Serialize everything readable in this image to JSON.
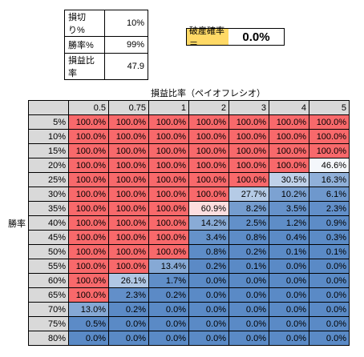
{
  "params": {
    "rows": [
      {
        "label": "損切り%",
        "value": "10%"
      },
      {
        "label": "勝率%",
        "value": "99%"
      },
      {
        "label": "損益比率",
        "value": "47.9"
      }
    ]
  },
  "ruin": {
    "label": "破産確率＝",
    "value": "0.0%"
  },
  "grid": {
    "title": "損益比率（ペイオフレシオ）",
    "row_axis_label": "勝率",
    "columns": [
      "0.5",
      "0.75",
      "1",
      "2",
      "3",
      "4",
      "5"
    ],
    "rows": [
      {
        "rate": "5%",
        "cells": [
          "100.0%",
          "100.0%",
          "100.0%",
          "100.0%",
          "100.0%",
          "100.0%",
          "100.0%"
        ]
      },
      {
        "rate": "10%",
        "cells": [
          "100.0%",
          "100.0%",
          "100.0%",
          "100.0%",
          "100.0%",
          "100.0%",
          "100.0%"
        ]
      },
      {
        "rate": "15%",
        "cells": [
          "100.0%",
          "100.0%",
          "100.0%",
          "100.0%",
          "100.0%",
          "100.0%",
          "100.0%"
        ]
      },
      {
        "rate": "20%",
        "cells": [
          "100.0%",
          "100.0%",
          "100.0%",
          "100.0%",
          "100.0%",
          "100.0%",
          "46.6%"
        ]
      },
      {
        "rate": "25%",
        "cells": [
          "100.0%",
          "100.0%",
          "100.0%",
          "100.0%",
          "100.0%",
          "30.5%",
          "16.3%"
        ]
      },
      {
        "rate": "30%",
        "cells": [
          "100.0%",
          "100.0%",
          "100.0%",
          "100.0%",
          "27.7%",
          "10.2%",
          "6.1%"
        ]
      },
      {
        "rate": "35%",
        "cells": [
          "100.0%",
          "100.0%",
          "100.0%",
          "60.9%",
          "8.2%",
          "3.5%",
          "2.3%"
        ]
      },
      {
        "rate": "40%",
        "cells": [
          "100.0%",
          "100.0%",
          "100.0%",
          "14.2%",
          "2.5%",
          "1.2%",
          "0.9%"
        ]
      },
      {
        "rate": "45%",
        "cells": [
          "100.0%",
          "100.0%",
          "100.0%",
          "3.4%",
          "0.8%",
          "0.4%",
          "0.3%"
        ]
      },
      {
        "rate": "50%",
        "cells": [
          "100.0%",
          "100.0%",
          "100.0%",
          "0.8%",
          "0.2%",
          "0.1%",
          "0.1%"
        ]
      },
      {
        "rate": "55%",
        "cells": [
          "100.0%",
          "100.0%",
          "13.4%",
          "0.2%",
          "0.1%",
          "0.0%",
          "0.0%"
        ]
      },
      {
        "rate": "60%",
        "cells": [
          "100.0%",
          "26.1%",
          "1.7%",
          "0.0%",
          "0.0%",
          "0.0%",
          "0.0%"
        ]
      },
      {
        "rate": "65%",
        "cells": [
          "100.0%",
          "2.3%",
          "0.2%",
          "0.0%",
          "0.0%",
          "0.0%",
          "0.0%"
        ]
      },
      {
        "rate": "70%",
        "cells": [
          "13.0%",
          "0.2%",
          "0.0%",
          "0.0%",
          "0.0%",
          "0.0%",
          "0.0%"
        ]
      },
      {
        "rate": "75%",
        "cells": [
          "0.5%",
          "0.0%",
          "0.0%",
          "0.0%",
          "0.0%",
          "0.0%",
          "0.0%"
        ]
      },
      {
        "rate": "80%",
        "cells": [
          "0.0%",
          "0.0%",
          "0.0%",
          "0.0%",
          "0.0%",
          "0.0%",
          "0.0%"
        ]
      }
    ]
  },
  "colors": {
    "high": "#f8696b",
    "mid": "#ffffff",
    "low": "#5a8ac6",
    "header_bg": "#d9d9d9",
    "label_bg": "#ffd966"
  }
}
